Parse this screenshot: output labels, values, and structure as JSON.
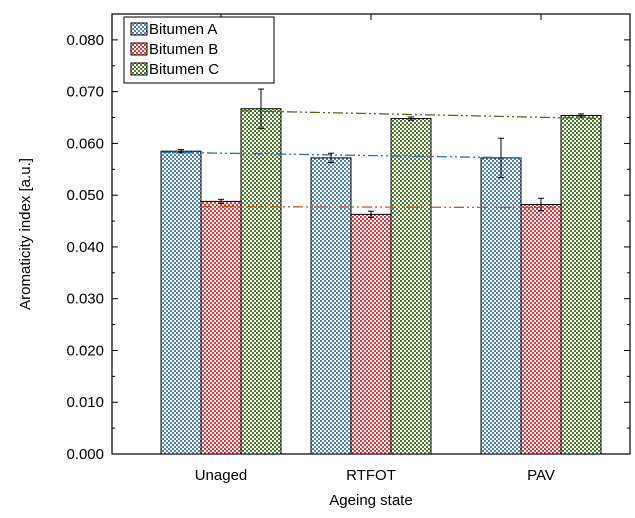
{
  "chart_data": {
    "type": "bar",
    "title": "",
    "xlabel": "Ageing state",
    "ylabel": "Aromaticity index [a.u.]",
    "ylim": [
      0.0,
      0.085
    ],
    "yticks": [
      "0.000",
      "0.010",
      "0.020",
      "0.030",
      "0.040",
      "0.050",
      "0.060",
      "0.070",
      "0.080"
    ],
    "categories": [
      "Unaged",
      "RTFOT",
      "PAV"
    ],
    "series": [
      {
        "name": "Bitumen A",
        "color": "#4f81bd",
        "values": [
          0.0585,
          0.0572,
          0.0572
        ],
        "errors": [
          0.0003,
          0.0009,
          0.0038
        ],
        "trend": [
          0.0583,
          0.0572
        ]
      },
      {
        "name": "Bitumen B",
        "color": "#e8333b",
        "values": [
          0.0488,
          0.0463,
          0.0482
        ],
        "errors": [
          0.0004,
          0.0006,
          0.0012
        ],
        "trend": [
          0.0478,
          0.0476
        ]
      },
      {
        "name": "Bitumen C",
        "color": "#4e7a2e",
        "values": [
          0.0667,
          0.0648,
          0.0654
        ],
        "errors": [
          0.0038,
          0.0003,
          0.0003
        ],
        "trend": [
          0.0663,
          0.0648
        ]
      }
    ],
    "trend_colors": [
      "#2f6db5",
      "#c85a1e",
      "#4e6a1e"
    ],
    "legend_position": "top-left",
    "grid": false
  }
}
